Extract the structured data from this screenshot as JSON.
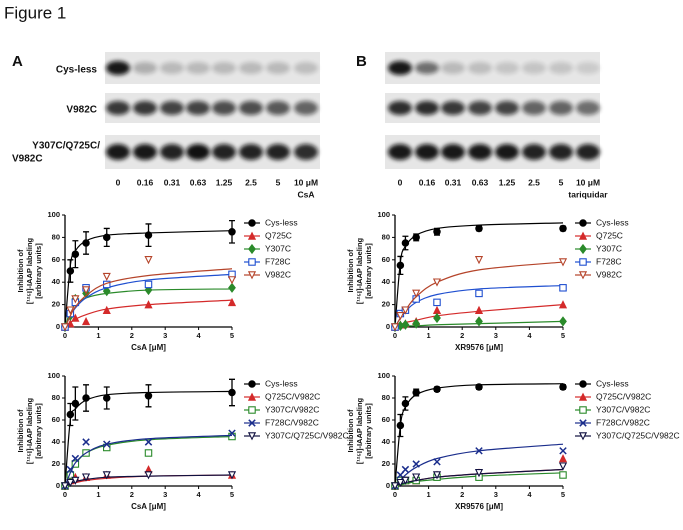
{
  "figure_title": "Figure 1",
  "gels": [
    {
      "label": "A",
      "rows": [
        [
          "Cys-less"
        ],
        [
          "V982C"
        ],
        [
          "Y307C/Q725C/",
          "V982C"
        ]
      ],
      "concentrations": [
        "0",
        "0.16",
        "0.31",
        "0.63",
        "1.25",
        "2.5",
        "5",
        "10 μM"
      ],
      "drug": "CsA"
    },
    {
      "label": "B",
      "concentrations": [
        "0",
        "0.16",
        "0.31",
        "0.63",
        "1.25",
        "2.5",
        "5",
        "10 μM"
      ],
      "drug": "tariquidar"
    }
  ],
  "chart_data": [
    {
      "type": "scatter",
      "x_label": "CsA [μM]",
      "y_label": [
        "Inhibition of",
        "[¹²⁵I]-IAAP labeling",
        "[arbitrary units]"
      ],
      "xlim": [
        0,
        5
      ],
      "ylim": [
        0,
        100
      ],
      "xticks": [
        0,
        1,
        2,
        3,
        4,
        5
      ],
      "yticks": [
        0,
        20,
        40,
        60,
        80,
        100
      ],
      "x": [
        0,
        0.16,
        0.31,
        0.63,
        1.25,
        2.5,
        5
      ],
      "series": [
        {
          "name": "Cys-less",
          "color": "#000000",
          "marker": "circle",
          "values": [
            0,
            50,
            65,
            75,
            80,
            82,
            85
          ],
          "errors": [
            null,
            10,
            12,
            10,
            8,
            10,
            10
          ],
          "curve_values": [
            0,
            55,
            68,
            77,
            82,
            84,
            86
          ]
        },
        {
          "name": "Q725C",
          "color": "#d42a2a",
          "marker": "triangle",
          "values": [
            0,
            3,
            8,
            5,
            15,
            20,
            22
          ],
          "curve_values": [
            0,
            4,
            7,
            11,
            16,
            20,
            24
          ]
        },
        {
          "name": "Y307C",
          "color": "#2a8a2a",
          "marker": "diamond",
          "values": [
            0,
            10,
            25,
            30,
            32,
            33,
            35
          ],
          "curve_values": [
            0,
            14,
            20,
            26,
            30,
            33,
            34
          ]
        },
        {
          "name": "F728C",
          "color": "#1f4fd0",
          "marker": "square",
          "values": [
            0,
            12,
            22,
            35,
            38,
            38,
            47
          ],
          "curve_values": [
            0,
            10,
            17,
            26,
            35,
            42,
            47
          ]
        },
        {
          "name": "V982C",
          "color": "#b5442a",
          "marker": "triangle-down",
          "values": [
            0,
            15,
            25,
            33,
            45,
            60,
            42
          ],
          "curve_values": [
            0,
            10,
            18,
            28,
            39,
            46,
            52
          ]
        }
      ]
    },
    {
      "type": "scatter",
      "x_label": "XR9576 [μM]",
      "y_label": [
        "Inhibition of",
        "[¹²⁵I]-IAAP labeling",
        "[arbitrary units]"
      ],
      "xlim": [
        0,
        5
      ],
      "ylim": [
        0,
        100
      ],
      "xticks": [
        0,
        1,
        2,
        3,
        4,
        5
      ],
      "yticks": [
        0,
        20,
        40,
        60,
        80,
        100
      ],
      "x": [
        0,
        0.16,
        0.31,
        0.63,
        1.25,
        2.5,
        5
      ],
      "series": [
        {
          "name": "Cys-less",
          "color": "#000000",
          "marker": "circle",
          "values": [
            0,
            55,
            75,
            80,
            85,
            88,
            88
          ],
          "errors": [
            null,
            8,
            6,
            3,
            3,
            2,
            2
          ],
          "curve_values": [
            0,
            58,
            72,
            82,
            88,
            91,
            93
          ]
        },
        {
          "name": "Q725C",
          "color": "#d42a2a",
          "marker": "triangle",
          "values": [
            0,
            2,
            3,
            5,
            15,
            15,
            20
          ],
          "curve_values": [
            0,
            2,
            4,
            6,
            10,
            14,
            20
          ]
        },
        {
          "name": "Y307C",
          "color": "#2a8a2a",
          "marker": "diamond",
          "values": [
            0,
            1,
            2,
            3,
            8,
            5,
            5
          ],
          "curve_values": [
            0,
            0,
            1,
            1,
            2,
            3,
            5
          ]
        },
        {
          "name": "F728C",
          "color": "#1f4fd0",
          "marker": "square",
          "values": [
            0,
            12,
            15,
            25,
            22,
            30,
            35
          ],
          "curve_values": [
            0,
            8,
            14,
            22,
            29,
            34,
            37
          ]
        },
        {
          "name": "V982C",
          "color": "#b5442a",
          "marker": "triangle-down",
          "values": [
            0,
            10,
            15,
            30,
            40,
            60,
            58
          ],
          "curve_values": [
            0,
            8,
            15,
            27,
            40,
            51,
            58
          ]
        }
      ]
    },
    {
      "type": "scatter",
      "x_label": "CsA [μM]",
      "y_label": [
        "Inhibition of",
        "[¹²⁵I]-IAAP labeling",
        "[arbitrary units]"
      ],
      "xlim": [
        0,
        5
      ],
      "ylim": [
        0,
        100
      ],
      "xticks": [
        0,
        1,
        2,
        3,
        4,
        5
      ],
      "yticks": [
        0,
        20,
        40,
        60,
        80,
        100
      ],
      "x": [
        0,
        0.16,
        0.31,
        0.63,
        1.25,
        2.5,
        5
      ],
      "series": [
        {
          "name": "Cys-less",
          "color": "#000000",
          "marker": "circle",
          "values": [
            0,
            65,
            75,
            80,
            80,
            82,
            85
          ],
          "errors": [
            null,
            10,
            15,
            12,
            10,
            10,
            12
          ],
          "curve_values": [
            0,
            60,
            70,
            78,
            83,
            85,
            86
          ]
        },
        {
          "name": "Q725C/V982C",
          "color": "#d42a2a",
          "marker": "triangle",
          "values": [
            0,
            5,
            8,
            8,
            10,
            15,
            10
          ],
          "curve_values": [
            0,
            2,
            3,
            5,
            7,
            9,
            10
          ]
        },
        {
          "name": "Y307C/V982C",
          "color": "#2a8a2a",
          "marker": "square",
          "values": [
            0,
            10,
            20,
            30,
            35,
            30,
            45
          ],
          "curve_values": [
            0,
            12,
            20,
            30,
            37,
            42,
            45
          ]
        },
        {
          "name": "F728C/V982C",
          "color": "#1a2d8c",
          "marker": "x",
          "values": [
            0,
            15,
            25,
            40,
            38,
            40,
            48
          ],
          "curve_values": [
            0,
            12,
            21,
            30,
            38,
            43,
            46
          ]
        },
        {
          "name": "Y307C/Q725C/V982C",
          "color": "#101040",
          "marker": "triangle-down",
          "values": [
            0,
            3,
            5,
            8,
            10,
            10,
            10
          ],
          "curve_values": [
            0,
            2,
            4,
            6,
            8,
            9,
            10
          ]
        }
      ]
    },
    {
      "type": "scatter",
      "x_label": "XR9576 [μM]",
      "y_label": [
        "Inhibition of",
        "[¹²⁵I]-IAAP labeling",
        "[arbitrary units]"
      ],
      "xlim": [
        0,
        5
      ],
      "ylim": [
        0,
        100
      ],
      "xticks": [
        0,
        1,
        2,
        3,
        4,
        5
      ],
      "yticks": [
        0,
        20,
        40,
        60,
        80,
        100
      ],
      "x": [
        0,
        0.16,
        0.31,
        0.63,
        1.25,
        2.5,
        5
      ],
      "series": [
        {
          "name": "Cys-less",
          "color": "#000000",
          "marker": "circle",
          "values": [
            0,
            55,
            75,
            85,
            88,
            90,
            90
          ],
          "errors": [
            null,
            10,
            6,
            3,
            2,
            2,
            2
          ],
          "curve_values": [
            0,
            55,
            72,
            83,
            89,
            92,
            93
          ]
        },
        {
          "name": "Q725C/V982C",
          "color": "#d42a2a",
          "marker": "triangle",
          "values": [
            0,
            5,
            5,
            5,
            10,
            12,
            25
          ],
          "curve_values": [
            0,
            1,
            3,
            5,
            8,
            11,
            15
          ]
        },
        {
          "name": "Y307C/V982C",
          "color": "#2a8a2a",
          "marker": "square",
          "values": [
            0,
            5,
            5,
            5,
            8,
            8,
            10
          ],
          "curve_values": [
            0,
            1,
            2,
            4,
            6,
            9,
            12
          ]
        },
        {
          "name": "F728C/V982C",
          "color": "#1a2d8c",
          "marker": "x",
          "values": [
            0,
            10,
            15,
            20,
            22,
            32,
            32
          ],
          "curve_values": [
            0,
            5,
            10,
            17,
            25,
            32,
            38
          ]
        },
        {
          "name": "Y307C/Q725C/V982C",
          "color": "#101040",
          "marker": "triangle-down",
          "values": [
            0,
            3,
            5,
            8,
            10,
            12,
            18
          ],
          "curve_values": [
            0,
            2,
            3,
            5,
            8,
            11,
            15
          ]
        }
      ]
    }
  ]
}
